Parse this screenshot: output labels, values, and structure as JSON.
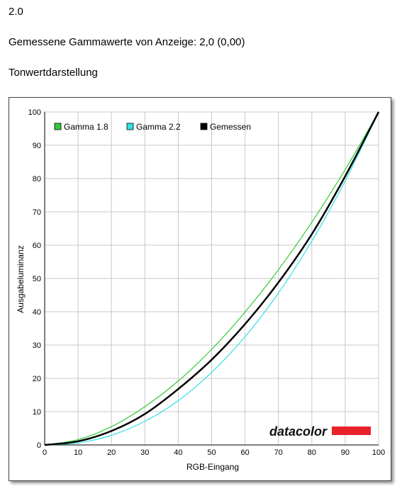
{
  "header": {
    "version": "2.0",
    "gamma_measured": "Gemessene Gammawerte von Anzeige: 2,0 (0,00)",
    "section_title": "Tonwertdarstellung"
  },
  "logo": {
    "text": "datacolor",
    "bar_color": "#e8212b"
  },
  "chart_data": {
    "type": "line",
    "title": "",
    "xlabel": "RGB-Eingang",
    "ylabel": "Ausgabeluminanz",
    "xlim": [
      0,
      100
    ],
    "ylim": [
      0,
      100
    ],
    "xticks": [
      0,
      10,
      20,
      30,
      40,
      50,
      60,
      70,
      80,
      90,
      100
    ],
    "yticks": [
      0,
      10,
      20,
      30,
      40,
      50,
      60,
      70,
      80,
      90,
      100
    ],
    "grid": true,
    "legend_position": "top-left",
    "x": [
      0,
      10,
      20,
      30,
      40,
      50,
      60,
      70,
      80,
      90,
      100
    ],
    "series": [
      {
        "name": "Gamma 1.8",
        "color": "#33cc33",
        "values": [
          0,
          1.6,
          5.5,
          11.5,
          19.2,
          28.7,
          39.9,
          52.6,
          66.9,
          82.7,
          100
        ]
      },
      {
        "name": "Gamma 2.2",
        "color": "#33e0e8",
        "values": [
          0,
          0.6,
          2.9,
          7.1,
          13.3,
          21.8,
          32.5,
          45.6,
          61.2,
          79.3,
          100
        ]
      },
      {
        "name": "Gemessen",
        "color": "#000000",
        "values": [
          0,
          1.1,
          4.2,
          9.3,
          16.8,
          25.6,
          36.3,
          48.8,
          63.3,
          80.7,
          100
        ]
      }
    ]
  }
}
